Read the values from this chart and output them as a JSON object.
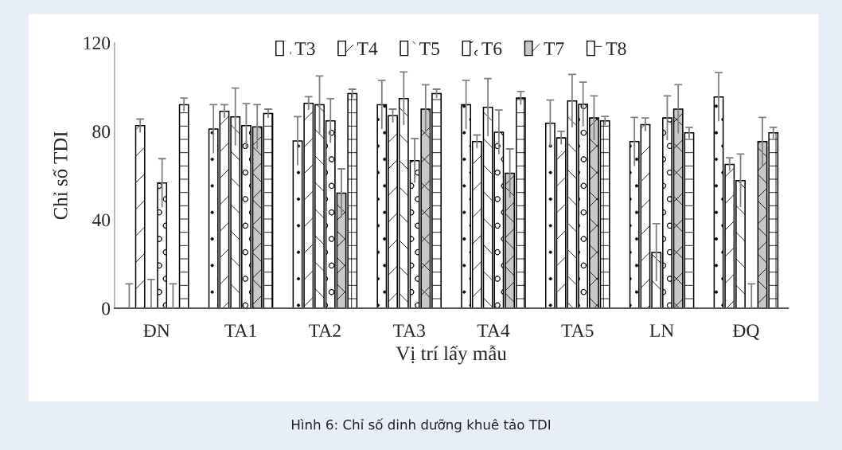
{
  "chart_data": {
    "type": "bar",
    "xlabel": "Vị trí lấy mẫu",
    "ylabel": "Chỉ số TDI",
    "categories": [
      "ĐN",
      "TA1",
      "TA2",
      "TA3",
      "TA4",
      "TA5",
      "LN",
      "ĐQ"
    ],
    "series": [
      {
        "name": "T3",
        "color": "#ffffff",
        "values": [
          0,
          81,
          75.6,
          92,
          92,
          83.6,
          75.3,
          95.5
        ],
        "errors": [
          [
            0,
            11
          ],
          11,
          11,
          11,
          11,
          10.5,
          11,
          11
        ]
      },
      {
        "name": "T4",
        "color": "#ffffff",
        "values": [
          82.5,
          89,
          92.6,
          87,
          75.3,
          77,
          83,
          65
        ],
        "errors": [
          3,
          3,
          3,
          3,
          3,
          3,
          3,
          3
        ]
      },
      {
        "name": "T5",
        "color": "#ffffff",
        "values": [
          0,
          86.5,
          92,
          94.8,
          90.8,
          93.7,
          25.2,
          57.7
        ],
        "errors": [
          [
            0,
            13
          ],
          13,
          13,
          12,
          13,
          12,
          13,
          12
        ]
      },
      {
        "name": "T6",
        "color": "#ffffff",
        "values": [
          56.6,
          82.5,
          84.7,
          66.7,
          79.6,
          92.2,
          86,
          0
        ],
        "errors": [
          11,
          10,
          10,
          10,
          10,
          10,
          10,
          [
            0,
            11
          ]
        ]
      },
      {
        "name": "T7",
        "color": "#c8c8c8",
        "values": [
          0,
          82,
          52,
          90,
          61,
          86,
          90,
          75.3
        ],
        "errors": [
          [
            0,
            11
          ],
          10,
          11,
          11,
          11,
          10,
          11,
          11
        ]
      },
      {
        "name": "T8",
        "color": "#ffffff",
        "values": [
          92,
          88,
          97,
          97,
          95,
          84.7,
          79.3,
          79.3
        ],
        "errors": [
          3,
          2,
          2,
          2,
          3,
          2,
          2.5,
          2.5
        ]
      }
    ],
    "ylim": [
      0,
      120
    ],
    "yticks": [
      0,
      40,
      80,
      120
    ],
    "legend": "top",
    "grid": false,
    "annotations": [
      "Hình 6: Chỉ số dinh dưỡng khuê tảo TDI"
    ]
  }
}
